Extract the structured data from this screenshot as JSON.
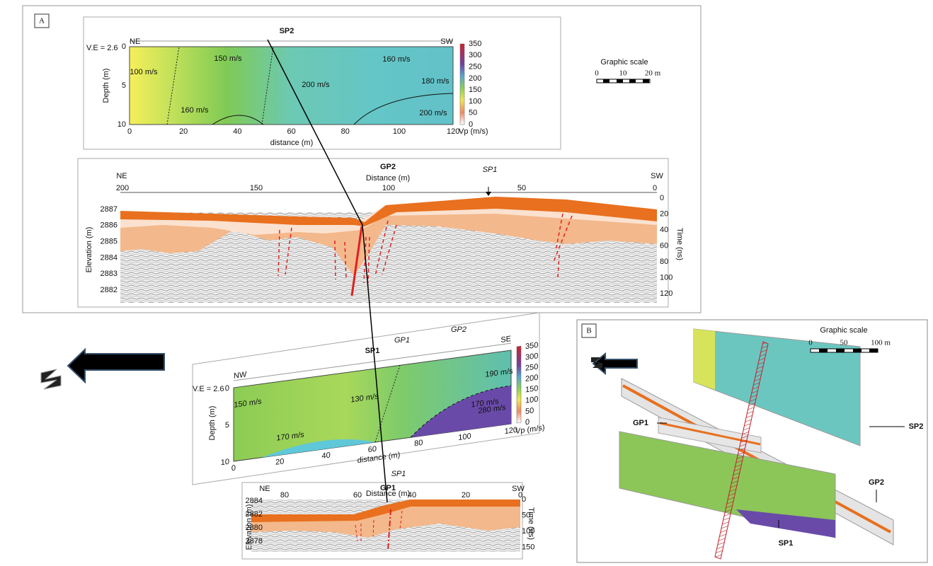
{
  "panel_a": {
    "label": "A",
    "sp2": {
      "title": "SP2",
      "ve": "V.E = 2.6",
      "left": "NE",
      "right": "SW",
      "y_label": "Depth (m)",
      "x_label": "distance (m)",
      "y_ticks": [
        "0",
        "5",
        "10"
      ],
      "x_ticks": [
        "0",
        "20",
        "40",
        "60",
        "80",
        "100",
        "120"
      ],
      "velocities": [
        "100 m/s",
        "150 m/s",
        "200 m/s",
        "160 m/s",
        "160 m/s",
        "180 m/s",
        "200 m/s"
      ],
      "colorbar_ticks": [
        "350",
        "300",
        "250",
        "200",
        "150",
        "100",
        "50",
        "0"
      ],
      "colorbar_label": "Vp (m/s)"
    },
    "scale": {
      "title": "Graphic scale",
      "ticks": [
        "0",
        "10",
        "20 m"
      ]
    },
    "gp2": {
      "title": "GP2",
      "subtitle": "Distance (m)",
      "left": "NE",
      "right": "SW",
      "marker": "SP1",
      "x_ticks": [
        "200",
        "150",
        "100",
        "50",
        "0"
      ],
      "y_label": "Elevation (m)",
      "y_ticks": [
        "2887",
        "2886",
        "2885",
        "2884",
        "2883",
        "2882"
      ],
      "y2_label": "Time (ns)",
      "y2_ticks": [
        "0",
        "20",
        "40",
        "60",
        "80",
        "100",
        "120"
      ]
    },
    "sp1": {
      "title": "SP1",
      "markers": [
        "GP1",
        "GP2"
      ],
      "ve": "V.E = 2.6",
      "left": "NW",
      "right": "SE",
      "y_label": "Depth (m)",
      "x_label": "distance (m)",
      "y_ticks": [
        "0",
        "5",
        "10"
      ],
      "x_ticks": [
        "0",
        "20",
        "40",
        "60",
        "80",
        "100",
        "120"
      ],
      "velocities": [
        "150 m/s",
        "130 m/s",
        "170 m/s",
        "190 m/s",
        "170 m/s",
        "280 m/s"
      ],
      "colorbar_ticks": [
        "350",
        "300",
        "250",
        "200",
        "150",
        "100",
        "50",
        "0"
      ],
      "colorbar_label": "Vp (m/s)"
    },
    "gp1": {
      "title": "GP1",
      "subtitle": "Distance (m)",
      "marker": "SP1",
      "left": "NE",
      "right": "SW",
      "x_ticks": [
        "80",
        "60",
        "40",
        "20",
        "0"
      ],
      "y_label": "Elevation (m)",
      "y_ticks": [
        "2884",
        "2882",
        "2880",
        "2878"
      ],
      "y2_label": "Time (ns)",
      "y2_ticks": [
        "0",
        "50",
        "100",
        "150"
      ]
    }
  },
  "panel_b": {
    "label": "B",
    "scale": {
      "title": "Graphic scale",
      "ticks": [
        "0",
        "50",
        "100 m"
      ]
    },
    "labels": [
      "GP1",
      "SP2",
      "GP2",
      "SP1"
    ]
  }
}
